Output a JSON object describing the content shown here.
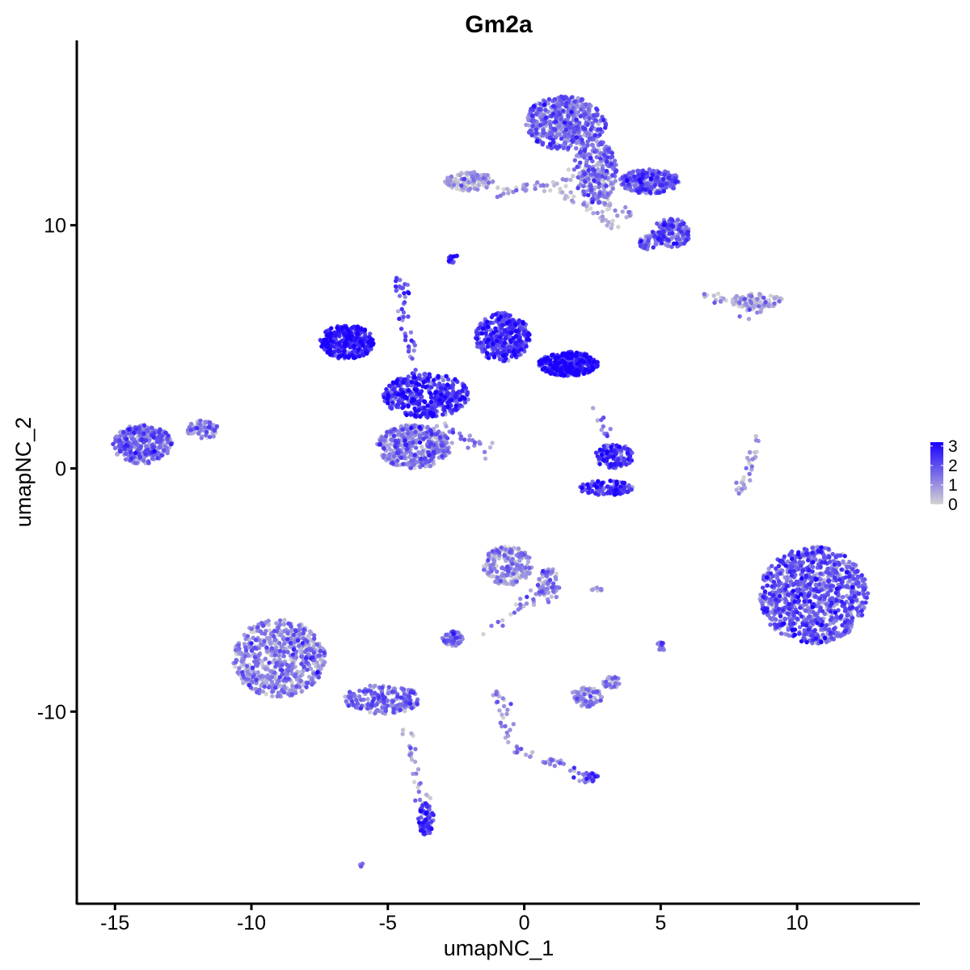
{
  "chart_data": {
    "type": "scatter",
    "title": "Gm2a",
    "xlabel": "umapNC_1",
    "ylabel": "umapNC_2",
    "xlim": [
      -16.4,
      14.5
    ],
    "ylim": [
      -17.9,
      17.6
    ],
    "x_ticks": [
      -15,
      -10,
      -5,
      0,
      5,
      10
    ],
    "x_tick_labels": [
      "-15",
      "-10",
      "-5",
      "0",
      "5",
      "10"
    ],
    "y_ticks": [
      -10,
      0,
      10
    ],
    "y_tick_labels": [
      "-10",
      "0",
      "10"
    ],
    "grid": false,
    "legend_position": "right",
    "colorbar": {
      "low_color": "#d3d3d3",
      "high_color": "#1a00ff",
      "range": [
        0,
        3.2
      ],
      "ticks": [
        0,
        1,
        2,
        3
      ],
      "tick_labels": [
        "0",
        "1",
        "2",
        "3"
      ]
    },
    "clusters": [
      {
        "cx": 1.5,
        "cy": 14.2,
        "rx": 1.5,
        "ry": 1.1,
        "n": 500,
        "expr": 1.3
      },
      {
        "cx": 2.6,
        "cy": 12.2,
        "rx": 0.8,
        "ry": 1.3,
        "n": 250,
        "expr": 1.2
      },
      {
        "cx": 4.6,
        "cy": 11.8,
        "rx": 1.1,
        "ry": 0.5,
        "n": 250,
        "expr": 1.6
      },
      {
        "cx": 5.4,
        "cy": 9.7,
        "rx": 0.7,
        "ry": 0.6,
        "n": 140,
        "expr": 1.6
      },
      {
        "cx": 4.6,
        "cy": 9.3,
        "rx": 0.4,
        "ry": 0.3,
        "n": 50,
        "expr": 1.5
      },
      {
        "cx": -2.0,
        "cy": 11.8,
        "rx": 0.9,
        "ry": 0.4,
        "n": 120,
        "expr": 0.5
      },
      {
        "cx": -2.6,
        "cy": 8.6,
        "rx": 0.2,
        "ry": 0.2,
        "n": 14,
        "expr": 2.0
      },
      {
        "cx": 8.5,
        "cy": 6.9,
        "rx": 1.0,
        "ry": 0.3,
        "n": 80,
        "expr": 0.3
      },
      {
        "cx": -6.5,
        "cy": 5.2,
        "rx": 1.0,
        "ry": 0.7,
        "n": 320,
        "expr": 2.5
      },
      {
        "cx": -0.8,
        "cy": 5.4,
        "rx": 1.0,
        "ry": 1.0,
        "n": 330,
        "expr": 2.2
      },
      {
        "cx": 1.6,
        "cy": 4.3,
        "rx": 1.1,
        "ry": 0.5,
        "n": 360,
        "expr": 2.5
      },
      {
        "cx": -3.6,
        "cy": 3.0,
        "rx": 1.6,
        "ry": 0.9,
        "n": 420,
        "expr": 2.2
      },
      {
        "cx": -4.0,
        "cy": 0.9,
        "rx": 1.4,
        "ry": 0.9,
        "n": 400,
        "expr": 1.0
      },
      {
        "cx": 3.3,
        "cy": 0.5,
        "rx": 0.7,
        "ry": 0.5,
        "n": 120,
        "expr": 2.1
      },
      {
        "cx": 3.0,
        "cy": -0.8,
        "rx": 1.0,
        "ry": 0.3,
        "n": 110,
        "expr": 2.2
      },
      {
        "cx": -14.0,
        "cy": 1.0,
        "rx": 1.1,
        "ry": 0.8,
        "n": 330,
        "expr": 1.3
      },
      {
        "cx": -11.8,
        "cy": 1.6,
        "rx": 0.6,
        "ry": 0.4,
        "n": 60,
        "expr": 1.1
      },
      {
        "cx": 10.6,
        "cy": -5.2,
        "rx": 2.0,
        "ry": 2.0,
        "n": 950,
        "expr": 1.6
      },
      {
        "cx": -9.0,
        "cy": -7.8,
        "rx": 1.7,
        "ry": 1.6,
        "n": 600,
        "expr": 1.0
      },
      {
        "cx": -5.2,
        "cy": -9.5,
        "rx": 1.4,
        "ry": 0.6,
        "n": 200,
        "expr": 1.3
      },
      {
        "cx": -0.6,
        "cy": -4.0,
        "rx": 0.9,
        "ry": 0.8,
        "n": 200,
        "expr": 0.7
      },
      {
        "cx": 0.9,
        "cy": -4.8,
        "rx": 0.4,
        "ry": 0.7,
        "n": 60,
        "expr": 0.9
      },
      {
        "cx": -2.6,
        "cy": -7.0,
        "rx": 0.4,
        "ry": 0.3,
        "n": 60,
        "expr": 1.2
      },
      {
        "cx": 2.3,
        "cy": -9.4,
        "rx": 0.6,
        "ry": 0.4,
        "n": 80,
        "expr": 0.8
      },
      {
        "cx": 3.2,
        "cy": -8.8,
        "rx": 0.3,
        "ry": 0.3,
        "n": 30,
        "expr": 1.0
      },
      {
        "cx": -3.6,
        "cy": -14.4,
        "rx": 0.3,
        "ry": 0.7,
        "n": 70,
        "expr": 2.0
      },
      {
        "cx": 2.4,
        "cy": -12.7,
        "rx": 0.3,
        "ry": 0.2,
        "n": 25,
        "expr": 1.6
      },
      {
        "cx": 5.0,
        "cy": -7.3,
        "rx": 0.2,
        "ry": 0.2,
        "n": 15,
        "expr": 1.0
      },
      {
        "cx": 2.7,
        "cy": -5.0,
        "rx": 0.3,
        "ry": 0.1,
        "n": 8,
        "expr": 1.0
      },
      {
        "cx": -6.0,
        "cy": -16.3,
        "rx": 0.1,
        "ry": 0.1,
        "n": 4,
        "expr": 1.2
      }
    ],
    "trails": [
      {
        "from": [
          -1.0,
          11.3
        ],
        "to": [
          2.0,
          11.9
        ],
        "n": 40,
        "expr": 0.6
      },
      {
        "from": [
          1.2,
          11.5
        ],
        "to": [
          3.6,
          9.8
        ],
        "n": 30,
        "expr": 0.4
      },
      {
        "from": [
          2.5,
          11.2
        ],
        "to": [
          4.0,
          10.3
        ],
        "n": 25,
        "expr": 0.6
      },
      {
        "from": [
          6.6,
          7.1
        ],
        "to": [
          8.8,
          6.6
        ],
        "n": 30,
        "expr": 0.3
      },
      {
        "from": [
          8.0,
          6.0
        ],
        "to": [
          8.6,
          6.6
        ],
        "n": 8,
        "expr": 1.0
      },
      {
        "from": [
          -4.6,
          7.5
        ],
        "to": [
          -3.8,
          2.5
        ],
        "n": 45,
        "expr": 1.8
      },
      {
        "from": [
          -4.4,
          7.3
        ],
        "to": [
          -4.6,
          7.7
        ],
        "n": 10,
        "expr": 2.0
      },
      {
        "from": [
          -3.2,
          1.8
        ],
        "to": [
          -1.2,
          0.7
        ],
        "n": 25,
        "expr": 1.0
      },
      {
        "from": [
          2.6,
          2.6
        ],
        "to": [
          3.2,
          1.0
        ],
        "n": 12,
        "expr": 1.5
      },
      {
        "from": [
          8.6,
          1.2
        ],
        "to": [
          7.8,
          -1.2
        ],
        "n": 30,
        "expr": 0.8
      },
      {
        "from": [
          1.2,
          -4.6
        ],
        "to": [
          -1.6,
          -6.8
        ],
        "n": 30,
        "expr": 0.9
      },
      {
        "from": [
          -4.3,
          -10.6
        ],
        "to": [
          -3.6,
          -14.3
        ],
        "n": 30,
        "expr": 0.8
      },
      {
        "from": [
          -1.0,
          -9.1
        ],
        "to": [
          -0.5,
          -11.5
        ],
        "n": 25,
        "expr": 1.0
      },
      {
        "from": [
          -0.5,
          -11.5
        ],
        "to": [
          2.4,
          -12.6
        ],
        "n": 35,
        "expr": 1.2
      }
    ]
  }
}
